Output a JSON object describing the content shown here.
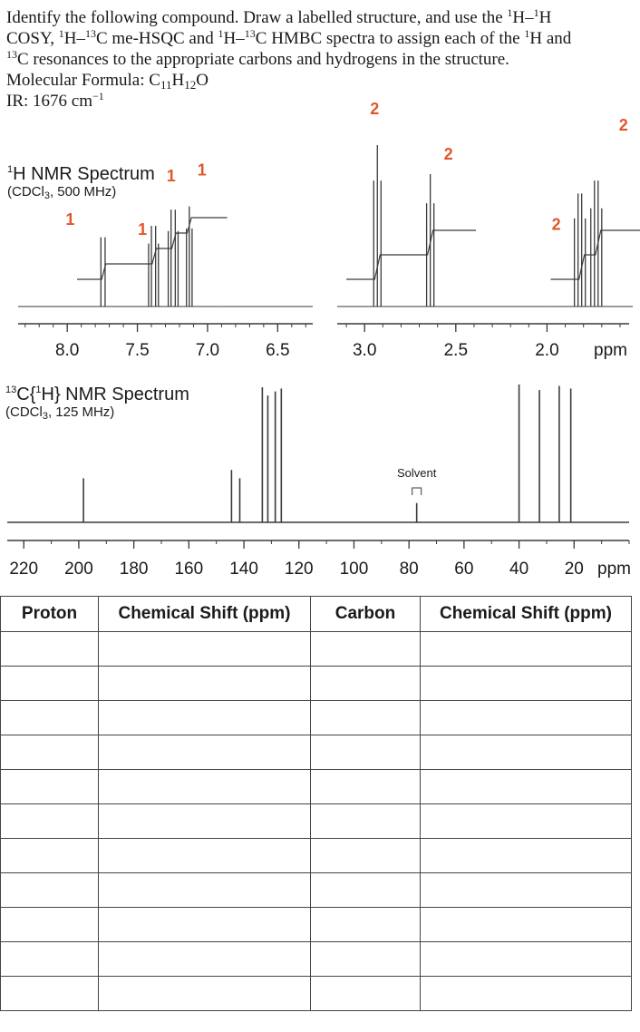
{
  "problem": {
    "line1_a": "Identify the following compound.  Draw a labelled structure, and use the ",
    "line1_b": "H–",
    "line1_c": "H",
    "line2_a": "COSY, ",
    "line2_b": "H–",
    "line2_c": "C me-HSQC and ",
    "line2_d": "H–",
    "line2_e": "C HMBC spectra to assign each of the ",
    "line2_f": "H and",
    "line3_b": "C resonances to the appropriate carbons and hydrogens in the structure.",
    "sup1": "1",
    "sup13": "13",
    "formula_label": "Molecular Formula: ",
    "formula_c": "C",
    "formula_c_count": "11",
    "formula_h": "H",
    "formula_h_count": "12",
    "formula_o": "O",
    "ir_label": "IR: 1676 cm",
    "ir_exp": "−1"
  },
  "h_spectrum": {
    "title_sup": "1",
    "title": "H NMR Spectrum",
    "cond_a": "(CDCl",
    "cond_sub": "3",
    "cond_b": ", 500 MHz)"
  },
  "c_spectrum": {
    "title_sup_13": "13",
    "title_a": "C{",
    "title_sup_1": "1",
    "title_b": "H} NMR Spectrum",
    "cond_a": "(CDCl",
    "cond_sub": "3",
    "cond_b": ", 125 MHz)"
  },
  "colors": {
    "integration": "#e2572a",
    "trace": "#3a3a3a"
  },
  "chart_data": [
    {
      "type": "line",
      "spectrum": "1H NMR",
      "xlabel": "ppm",
      "x_direction": "decreasing",
      "axis_segments": [
        {
          "xlim": [
            8.35,
            6.25
          ],
          "ticks": [
            "8.0",
            "7.5",
            "7.0",
            "6.5"
          ],
          "tick_values": [
            8.0,
            7.5,
            7.0,
            6.5
          ]
        },
        {
          "xlim": [
            3.15,
            1.55
          ],
          "ticks": [
            "3.0",
            "2.5",
            "2.0",
            "ppm"
          ],
          "tick_values": [
            3.0,
            2.5,
            2.0,
            null
          ]
        }
      ],
      "peaks": [
        {
          "shift": 7.74,
          "integration": "1",
          "lines": [
            7.76,
            7.73
          ],
          "height": 0.55
        },
        {
          "shift": 7.38,
          "integration": "1",
          "lines": [
            7.42,
            7.4,
            7.37,
            7.35
          ],
          "height": 0.5
        },
        {
          "shift": 7.24,
          "integration": "1",
          "lines": [
            7.28,
            7.26,
            7.23,
            7.21
          ],
          "height": 0.6
        },
        {
          "shift": 7.13,
          "integration": "1",
          "lines": [
            7.15,
            7.13,
            7.11
          ],
          "height": 0.62
        },
        {
          "shift": 2.93,
          "integration": "2",
          "lines": [
            2.95,
            2.93,
            2.91
          ],
          "height": 1.0
        },
        {
          "shift": 2.64,
          "integration": "2",
          "lines": [
            2.66,
            2.64,
            2.62
          ],
          "height": 0.82
        },
        {
          "shift": 1.81,
          "integration": "2",
          "lines": [
            1.85,
            1.83,
            1.81,
            1.79
          ],
          "height": 0.7
        },
        {
          "shift": 1.72,
          "integration": "2",
          "lines": [
            1.76,
            1.74,
            1.72,
            1.7
          ],
          "height": 0.78
        }
      ]
    },
    {
      "type": "line",
      "spectrum": "13C{1H} NMR",
      "xlabel": "ppm",
      "x_direction": "decreasing",
      "xlim": [
        226,
        0
      ],
      "ticks": [
        "220",
        "200",
        "180",
        "160",
        "140",
        "120",
        "100",
        "80",
        "60",
        "40",
        "20",
        "ppm"
      ],
      "tick_values": [
        220,
        200,
        180,
        160,
        140,
        120,
        100,
        80,
        60,
        40,
        20,
        null
      ],
      "annotations": [
        {
          "text": "Solvent",
          "x": 77.2
        }
      ],
      "peaks": [
        {
          "shift": 198.3,
          "height": 0.32
        },
        {
          "shift": 144.5,
          "height": 0.38
        },
        {
          "shift": 141.5,
          "height": 0.32
        },
        {
          "shift": 133.3,
          "height": 0.98
        },
        {
          "shift": 131.3,
          "height": 0.92
        },
        {
          "shift": 128.6,
          "height": 0.95
        },
        {
          "shift": 126.4,
          "height": 0.97
        },
        {
          "shift": 77.2,
          "height": 0.14
        },
        {
          "shift": 40.0,
          "height": 1.0
        },
        {
          "shift": 32.6,
          "height": 0.96
        },
        {
          "shift": 25.4,
          "height": 0.99
        },
        {
          "shift": 21.2,
          "height": 0.97
        }
      ]
    }
  ],
  "table": {
    "headers": [
      "Proton",
      "Chemical Shift (ppm)",
      "Carbon",
      "Chemical Shift (ppm)"
    ],
    "rows": [
      [
        "",
        "",
        "",
        ""
      ],
      [
        "",
        "",
        "",
        ""
      ],
      [
        "",
        "",
        "",
        ""
      ],
      [
        "",
        "",
        "",
        ""
      ],
      [
        "",
        "",
        "",
        ""
      ],
      [
        "",
        "",
        "",
        ""
      ],
      [
        "",
        "",
        "",
        ""
      ],
      [
        "",
        "",
        "",
        ""
      ],
      [
        "",
        "",
        "",
        ""
      ],
      [
        "",
        "",
        "",
        ""
      ],
      [
        "",
        "",
        "",
        ""
      ]
    ]
  }
}
